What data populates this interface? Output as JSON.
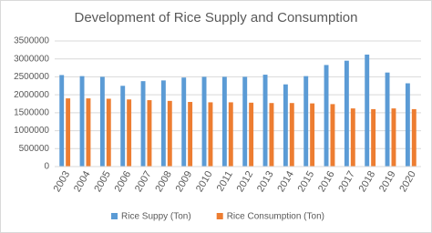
{
  "chart_data": {
    "type": "bar",
    "title": "Development of Rice Supply and Consumption",
    "categories": [
      "2003",
      "2004",
      "2005",
      "2006",
      "2007",
      "2008",
      "2009",
      "2010",
      "2011",
      "2012",
      "2013",
      "2014",
      "2015",
      "2016",
      "2017",
      "2018",
      "2019",
      "2020"
    ],
    "series": [
      {
        "name": "Rice Suppy (Ton)",
        "color": "#5b9bd5",
        "values": [
          2550000,
          2520000,
          2500000,
          2250000,
          2380000,
          2400000,
          2480000,
          2500000,
          2500000,
          2500000,
          2560000,
          2290000,
          2520000,
          2830000,
          2950000,
          3120000,
          2620000,
          2320000
        ]
      },
      {
        "name": "Rice Consumption (Ton)",
        "color": "#ed7d31",
        "values": [
          1900000,
          1900000,
          1890000,
          1870000,
          1850000,
          1830000,
          1800000,
          1790000,
          1790000,
          1780000,
          1770000,
          1770000,
          1760000,
          1740000,
          1620000,
          1600000,
          1620000,
          1600000
        ]
      }
    ],
    "ylim": [
      0,
      3500000
    ],
    "yticks": [
      0,
      500000,
      1000000,
      1500000,
      2000000,
      2500000,
      3000000,
      3500000
    ],
    "grid": true,
    "legend": "bottom"
  }
}
